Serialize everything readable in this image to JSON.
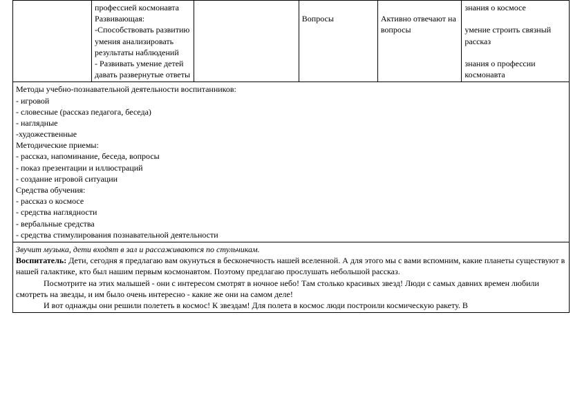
{
  "table_row": {
    "col0": "",
    "col1": "профессией космонавта\nРазвивающая:\n-Способствовать развитию умения анализировать результаты наблюдений\n- Развивать умение детей давать развернутые ответы",
    "col2": "",
    "col3": "\nВопросы",
    "col4": "\nАктивно отвечают на вопросы",
    "col5": "знания о космосе\n\nумение строить связный рассказ\n\nзнания о профессии космонавта"
  },
  "methods_block": [
    "Методы учебно-познавательной деятельности воспитанников:",
    "- игровой",
    "- словесные (рассказ педагога, беседа)",
    "- наглядные",
    "-художественные",
    "Методические приемы:",
    "- рассказ, напоминание, беседа, вопросы",
    "- показ презентации и иллюстраций",
    "- создание игровой ситуации",
    "Средства обучения:",
    "- рассказ о космосе",
    "- средства наглядности",
    "- вербальные средства",
    "- средства стимулирования познавательной деятельности"
  ],
  "narrative": {
    "intro_italic": "Звучит музыка, дети входят в зал и рассаживаются по стульчикам.",
    "speaker": "Воспитатель:",
    "line1": " Дети, сегодня я предлагаю вам окунуться в бесконечность нашей вселенной. А для этого мы с вами вспомним, какие планеты существуют в нашей галактике, кто был нашим первым космонавтом. Поэтому предлагаю прослушать небольшой рассказ.",
    "para2": "Посмотрите на этих малышей - они с интересом смотрят в ночное небо! Там столько красивых звезд! Люди с самых давних времен любили смотреть на звезды, и им было очень интересно - какие же они на самом деле!",
    "para3": "И вот однажды они решили полететь в космос! К звездам! Для полета в космос люди построили космическую ракету. В"
  },
  "style": {
    "font_family": "Times New Roman",
    "font_size_pt": 12,
    "text_color": "#000000",
    "bg_color": "#ffffff",
    "border_color": "#000000"
  }
}
